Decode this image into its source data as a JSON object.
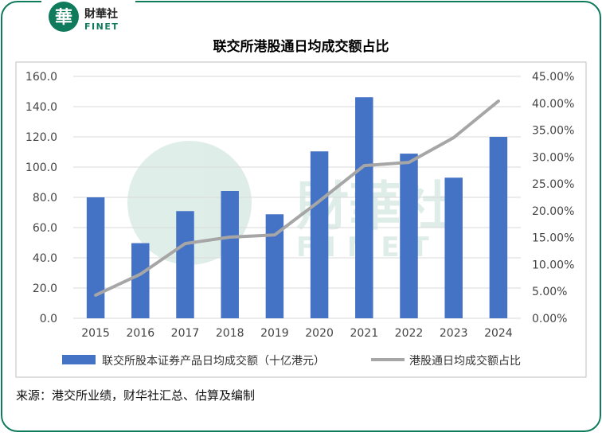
{
  "brand": {
    "logo_glyph": "華",
    "name_cn": "財華社",
    "name_en": "FINET",
    "accent_color": "#0f7a5c"
  },
  "chart_data": {
    "type": "bar+line",
    "title": "联交所港股通日均成交额占比",
    "categories": [
      "2015",
      "2016",
      "2017",
      "2018",
      "2019",
      "2020",
      "2021",
      "2022",
      "2023",
      "2024"
    ],
    "series": [
      {
        "name": "联交所股本证券产品日均成交额（十亿港元）",
        "type": "bar",
        "axis": "left",
        "color": "#4472c4",
        "values": [
          80.0,
          49.7,
          70.9,
          84.2,
          68.8,
          110.4,
          146.2,
          108.9,
          93.0,
          120.0
        ]
      },
      {
        "name": "港股通日均成交额占比",
        "type": "line",
        "axis": "right",
        "color": "#a6a6a6",
        "values": [
          4.3,
          8.2,
          13.9,
          15.1,
          15.5,
          21.8,
          28.4,
          29.0,
          33.6,
          40.4
        ]
      }
    ],
    "y_left": {
      "min": 0,
      "max": 160,
      "step": 20,
      "tick_labels": [
        "0.0",
        "20.0",
        "40.0",
        "60.0",
        "80.0",
        "100.0",
        "120.0",
        "140.0",
        "160.0"
      ]
    },
    "y_right": {
      "min": 0,
      "max": 45,
      "step": 5,
      "tick_labels": [
        "0.00%",
        "5.00%",
        "10.00%",
        "15.00%",
        "20.00%",
        "25.00%",
        "30.00%",
        "35.00%",
        "40.00%",
        "45.00%"
      ]
    },
    "legend_position": "bottom",
    "gridlines": true
  },
  "watermark": {
    "name_cn": "財華社",
    "name_en": "FINET"
  },
  "source": "来源：港交所业绩，财华社汇总、估算及编制"
}
